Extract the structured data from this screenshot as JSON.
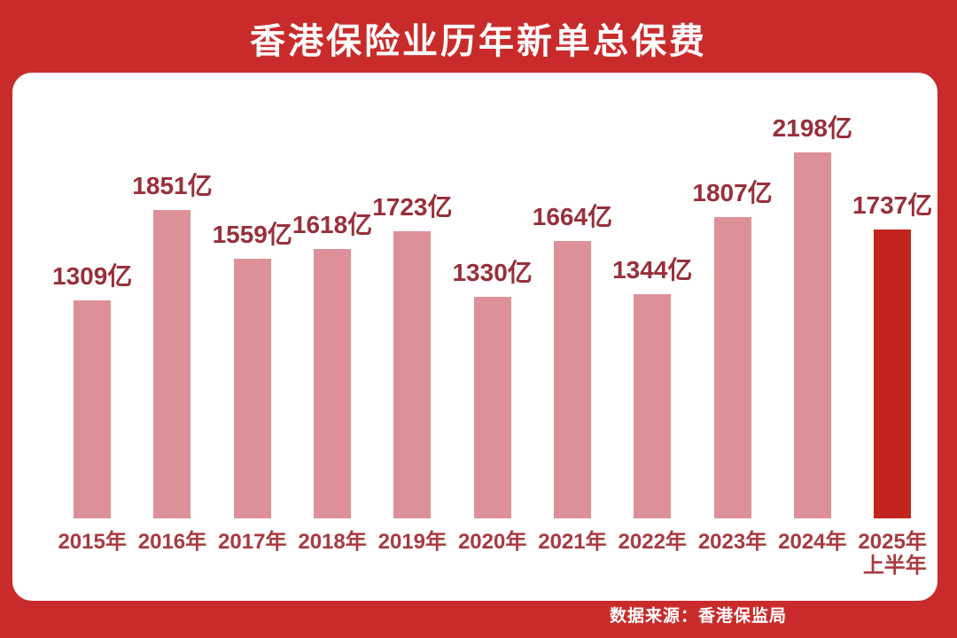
{
  "poster": {
    "title": "香港保险业历年新单总保费",
    "source": "数据来源：香港保监局"
  },
  "colors": {
    "background": "#c92b2b",
    "card": "#ffffff",
    "bar": "#dd9098",
    "bar_highlight": "#c4241e",
    "value_label": "#97303a",
    "year_label": "#a63b41",
    "title_text": "#ffffff"
  },
  "chart_data": {
    "type": "bar",
    "title": "香港保险业历年新单总保费",
    "unit": "亿",
    "categories": [
      "2015年",
      "2016年",
      "2017年",
      "2018年",
      "2019年",
      "2020年",
      "2021年",
      "2022年",
      "2023年",
      "2024年",
      "2025年"
    ],
    "category_sublabels": [
      "",
      "",
      "",
      "",
      "",
      "",
      "",
      "",
      "",
      "",
      "上半年"
    ],
    "values": [
      1309,
      1851,
      1559,
      1618,
      1723,
      1330,
      1664,
      1344,
      1807,
      2198,
      1737
    ],
    "value_labels": [
      "1309亿",
      "1851亿",
      "1559亿",
      "1618亿",
      "1723亿",
      "1330亿",
      "1664亿",
      "1344亿",
      "1807亿",
      "2198亿",
      "1737亿"
    ],
    "highlight_index": 10,
    "ylim": [
      0,
      2198
    ],
    "grid": false,
    "legend": false,
    "bar_color": "#dd9098",
    "highlight_color": "#c4241e",
    "source": "数据来源：香港保监局"
  }
}
